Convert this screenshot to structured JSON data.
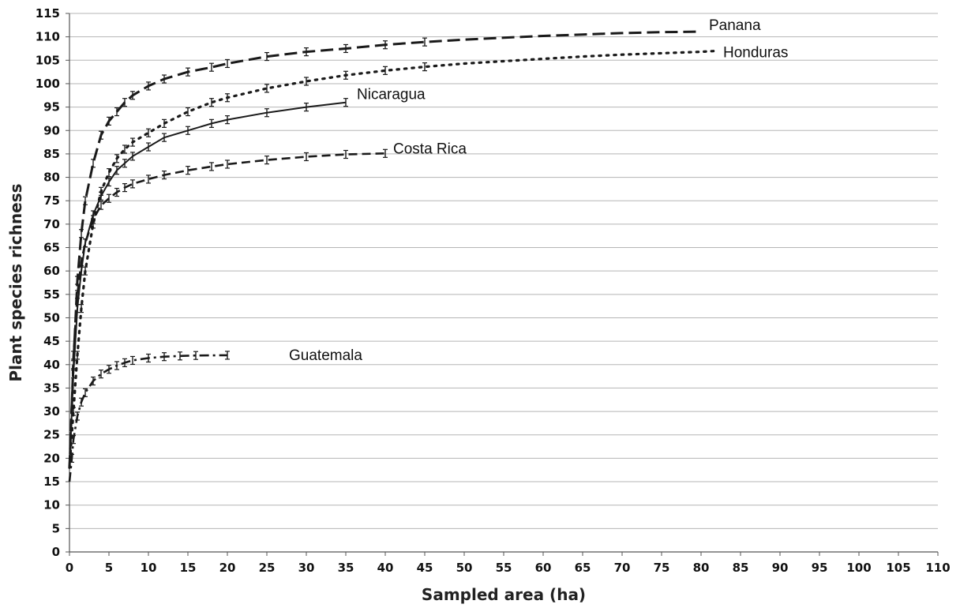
{
  "chart_data": {
    "type": "line",
    "title": "",
    "xlabel": "Sampled area (ha)",
    "ylabel": "Plant species  richness",
    "xlim": [
      0,
      110
    ],
    "ylim": [
      0,
      115
    ],
    "xticks": [
      "0",
      "5",
      "10",
      "15",
      "20",
      "25",
      "30",
      "35",
      "40",
      "45",
      "50",
      "55",
      "60",
      "65",
      "70",
      "75",
      "80",
      "85",
      "90",
      "95",
      "100",
      "105",
      "110"
    ],
    "yticks": [
      "0",
      "5",
      "10",
      "15",
      "20",
      "25",
      "30",
      "35",
      "40",
      "45",
      "50",
      "55",
      "60",
      "65",
      "70",
      "75",
      "80",
      "85",
      "90",
      "95",
      "100",
      "105",
      "110",
      "115"
    ],
    "grid": "horizontal",
    "legend": "inline labels at line ends",
    "series": [
      {
        "name": "Panana",
        "line_style": "long-dash",
        "points": [
          [
            0,
            18
          ],
          [
            0.5,
            40
          ],
          [
            1,
            58
          ],
          [
            1.5,
            68
          ],
          [
            2,
            75
          ],
          [
            3,
            83
          ],
          [
            4,
            89
          ],
          [
            5,
            92
          ],
          [
            6,
            94
          ],
          [
            7,
            96
          ],
          [
            8,
            97.5
          ],
          [
            10,
            99.5
          ],
          [
            12,
            101
          ],
          [
            15,
            102.5
          ],
          [
            18,
            103.5
          ],
          [
            20,
            104.3
          ],
          [
            25,
            105.8
          ],
          [
            30,
            106.8
          ],
          [
            35,
            107.5
          ],
          [
            40,
            108.3
          ],
          [
            45,
            108.9
          ],
          [
            50,
            109.4
          ],
          [
            55,
            109.8
          ],
          [
            60,
            110.2
          ],
          [
            65,
            110.5
          ],
          [
            70,
            110.8
          ],
          [
            75,
            111
          ],
          [
            80,
            111.1
          ]
        ]
      },
      {
        "name": "Honduras",
        "line_style": "dotted",
        "points": [
          [
            0,
            18
          ],
          [
            0.5,
            30
          ],
          [
            1,
            42
          ],
          [
            1.5,
            52
          ],
          [
            2,
            60
          ],
          [
            3,
            70
          ],
          [
            4,
            77
          ],
          [
            5,
            81
          ],
          [
            6,
            84
          ],
          [
            7,
            86
          ],
          [
            8,
            87.5
          ],
          [
            10,
            89.5
          ],
          [
            12,
            91.5
          ],
          [
            15,
            94
          ],
          [
            18,
            96
          ],
          [
            20,
            97
          ],
          [
            25,
            99
          ],
          [
            30,
            100.5
          ],
          [
            35,
            101.8
          ],
          [
            40,
            102.8
          ],
          [
            45,
            103.6
          ],
          [
            50,
            104.3
          ],
          [
            55,
            104.8
          ],
          [
            60,
            105.3
          ],
          [
            65,
            105.8
          ],
          [
            70,
            106.2
          ],
          [
            75,
            106.5
          ],
          [
            80,
            106.8
          ],
          [
            82,
            107
          ]
        ]
      },
      {
        "name": "Nicaragua",
        "line_style": "solid",
        "points": [
          [
            0,
            18
          ],
          [
            0.5,
            38
          ],
          [
            1,
            52
          ],
          [
            1.5,
            60
          ],
          [
            2,
            66
          ],
          [
            3,
            72
          ],
          [
            4,
            76
          ],
          [
            5,
            79
          ],
          [
            6,
            81.5
          ],
          [
            7,
            83
          ],
          [
            8,
            84.5
          ],
          [
            10,
            86.5
          ],
          [
            12,
            88.5
          ],
          [
            15,
            90
          ],
          [
            18,
            91.5
          ],
          [
            20,
            92.3
          ],
          [
            25,
            93.8
          ],
          [
            30,
            95
          ],
          [
            35,
            96
          ]
        ]
      },
      {
        "name": "Costa Rica",
        "line_style": "dash",
        "points": [
          [
            0,
            18
          ],
          [
            0.5,
            42
          ],
          [
            1,
            55
          ],
          [
            1.5,
            62
          ],
          [
            2,
            66
          ],
          [
            3,
            71
          ],
          [
            4,
            74
          ],
          [
            5,
            75.5
          ],
          [
            6,
            76.8
          ],
          [
            7,
            77.8
          ],
          [
            8,
            78.6
          ],
          [
            10,
            79.6
          ],
          [
            12,
            80.5
          ],
          [
            15,
            81.5
          ],
          [
            18,
            82.3
          ],
          [
            20,
            82.8
          ],
          [
            25,
            83.7
          ],
          [
            30,
            84.4
          ],
          [
            35,
            84.9
          ],
          [
            40,
            85.1
          ]
        ]
      },
      {
        "name": "Guatemala",
        "line_style": "dash-dot",
        "points": [
          [
            0,
            15
          ],
          [
            0.3,
            20
          ],
          [
            0.5,
            24
          ],
          [
            1,
            29
          ],
          [
            1.5,
            32
          ],
          [
            2,
            34
          ],
          [
            3,
            36.5
          ],
          [
            4,
            38
          ],
          [
            5,
            39
          ],
          [
            6,
            39.8
          ],
          [
            7,
            40.4
          ],
          [
            8,
            40.9
          ],
          [
            10,
            41.4
          ],
          [
            12,
            41.7
          ],
          [
            14,
            41.85
          ],
          [
            16,
            41.95
          ],
          [
            20,
            42
          ]
        ]
      }
    ]
  }
}
